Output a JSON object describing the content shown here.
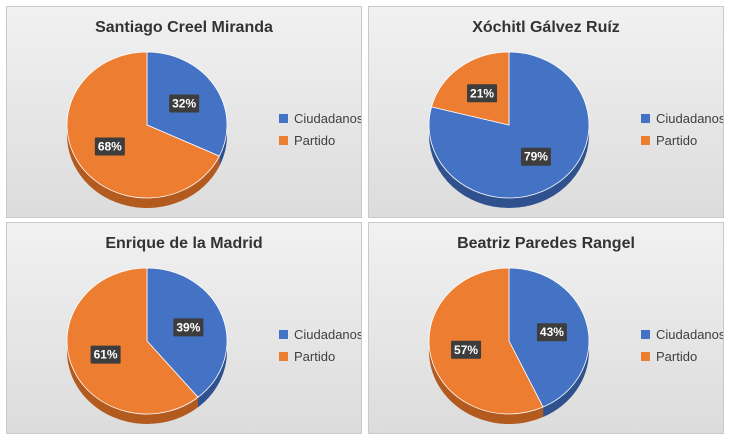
{
  "chart_data": [
    {
      "type": "pie",
      "title": "Santiago Creel Miranda",
      "labels": [
        "Ciudadanos",
        "Partido"
      ],
      "values": [
        32,
        68
      ],
      "data_labels": [
        "32%",
        "68%"
      ],
      "legend_position": "right",
      "colors": [
        "#4472c4",
        "#ed7d31"
      ],
      "style": "3d-tilted"
    },
    {
      "type": "pie",
      "title": "Xóchitl Gálvez Ruíz",
      "labels": [
        "Ciudadanos",
        "Partido"
      ],
      "values": [
        79,
        21
      ],
      "data_labels": [
        "79%",
        "21%"
      ],
      "legend_position": "right",
      "colors": [
        "#4472c4",
        "#ed7d31"
      ],
      "style": "3d-tilted"
    },
    {
      "type": "pie",
      "title": "Enrique de la Madrid",
      "labels": [
        "Ciudadanos",
        "Partido"
      ],
      "values": [
        39,
        61
      ],
      "data_labels": [
        "39%",
        "61%"
      ],
      "legend_position": "right",
      "colors": [
        "#4472c4",
        "#ed7d31"
      ],
      "style": "3d-tilted"
    },
    {
      "type": "pie",
      "title": "Beatriz Paredes Rangel",
      "labels": [
        "Ciudadanos",
        "Partido"
      ],
      "values": [
        43,
        57
      ],
      "data_labels": [
        "43%",
        "57%"
      ],
      "legend_position": "right",
      "colors": [
        "#4472c4",
        "#ed7d31"
      ],
      "style": "3d-tilted"
    }
  ]
}
